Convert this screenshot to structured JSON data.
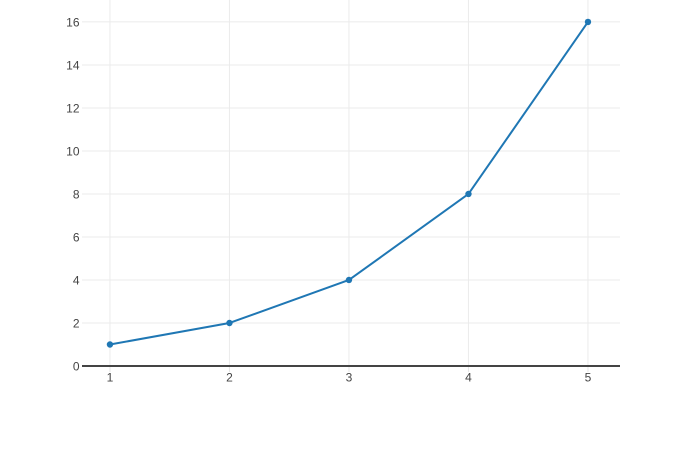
{
  "page": {
    "background": "#ffffff"
  },
  "chart_data": {
    "type": "line",
    "title": "",
    "xlabel": "",
    "ylabel": "",
    "series": [
      {
        "x": [
          1,
          2,
          3,
          4,
          5
        ],
        "y": [
          1,
          2,
          4,
          8,
          16
        ],
        "color": "#1f77b4",
        "markers": true,
        "line_width": 2,
        "marker_radius": 3.2
      }
    ],
    "x_ticks": [
      1,
      2,
      3,
      4,
      5
    ],
    "y_ticks": [
      0,
      2,
      4,
      6,
      8,
      10,
      12,
      14,
      16
    ],
    "xlim": [
      0.766,
      5.268
    ],
    "ylim": [
      0,
      17.02
    ],
    "grid": true,
    "legend": false,
    "colors": {
      "line": "#1f77b4",
      "grid": "#ebebeb",
      "tick_mark": "#e6e6e6",
      "axis_line": "#444444",
      "tick_label": "#444444",
      "background": "#ffffff"
    }
  }
}
